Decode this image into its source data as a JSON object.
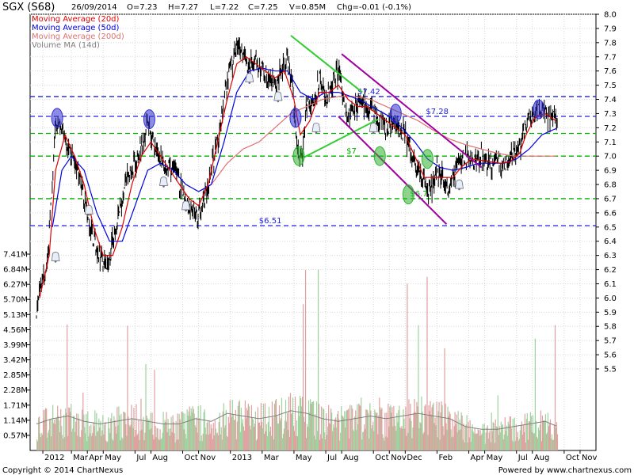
{
  "header": {
    "symbol": "SGX (S68)",
    "date": "26/09/2014",
    "open": "O=7.23",
    "high": "H=7.27",
    "low": "L=7.22",
    "close": "C=7.25",
    "volume": "V=0.85M",
    "change": "Chg=-0.01 (-0.1%)"
  },
  "footer": {
    "copyright": "Copyright © 2014 ChartNexus",
    "powered": "Powered by www.chartnexus.com"
  },
  "colors": {
    "price": "#000000",
    "ma20": "#e00000",
    "ma50": "#0000e0",
    "ma200": "#e07070",
    "volume_ma": "#808080",
    "vol_up": "#9ed29e",
    "vol_down": "#e0a0a0",
    "support": "#00b000",
    "resistance": "#2020e0",
    "trend_green": "#33cc33",
    "trend_purple": "#a000a0"
  },
  "chart_data": {
    "type": "line",
    "price_axis": {
      "min": 5.5,
      "max": 8.0,
      "ticks": [
        "8.0",
        "7.9",
        "7.8",
        "7.7",
        "7.6",
        "7.5",
        "7.4",
        "7.3",
        "7.2",
        "7.1",
        "7.0",
        "6.9",
        "6.8",
        "6.7",
        "6.6",
        "6.5",
        "6.4",
        "6.3",
        "6.2",
        "6.1",
        "6.0",
        "5.9",
        "5.8",
        "5.7",
        "5.6",
        "5.5"
      ]
    },
    "volume_axis": {
      "min": 0,
      "max": 7.41,
      "ticks": [
        "7.41M",
        "6.84M",
        "6.27M",
        "5.70M",
        "5.13M",
        "4.56M",
        "3.99M",
        "3.42M",
        "2.85M",
        "2.28M",
        "1.71M",
        "1.14M",
        "0.57M"
      ]
    },
    "x_labels": [
      {
        "label": "2012",
        "m": 0.4
      },
      {
        "label": "Mar",
        "m": 2.2
      },
      {
        "label": "Apr",
        "m": 3.2
      },
      {
        "label": "May",
        "m": 4.2
      },
      {
        "label": "Jul",
        "m": 6.2
      },
      {
        "label": "Aug",
        "m": 7.2
      },
      {
        "label": "Oct",
        "m": 9.2
      },
      {
        "label": "Nov",
        "m": 10.2
      },
      {
        "label": "2013",
        "m": 12.2
      },
      {
        "label": "Mar",
        "m": 14.2
      },
      {
        "label": "May",
        "m": 16.2
      },
      {
        "label": "Jul",
        "m": 18.2
      },
      {
        "label": "Aug",
        "m": 19.2
      },
      {
        "label": "Oct",
        "m": 21.2
      },
      {
        "label": "Nov",
        "m": 22.2
      },
      {
        "label": "Dec",
        "m": 23.2
      },
      {
        "label": "Feb",
        "m": 25.2
      },
      {
        "label": "Apr",
        "m": 27.2
      },
      {
        "label": "May",
        "m": 28.2
      },
      {
        "label": "Jul",
        "m": 30.2
      },
      {
        "label": "Aug",
        "m": 31.2
      },
      {
        "label": "Oct",
        "m": 33.2
      },
      {
        "label": "Nov",
        "m": 34.2
      }
    ],
    "legend": [
      {
        "name": "Moving Average (20d)",
        "color": "#e00000"
      },
      {
        "name": "Moving Average (50d)",
        "color": "#0000e0"
      },
      {
        "name": "Moving Average (200d)",
        "color": "#e07070"
      },
      {
        "name": "Volume MA (14d)",
        "color": "#808080"
      }
    ],
    "price_anchors": [
      [
        0.0,
        5.9
      ],
      [
        0.3,
        6.1
      ],
      [
        0.6,
        6.2
      ],
      [
        0.9,
        6.6
      ],
      [
        1.2,
        7.2
      ],
      [
        1.6,
        7.2
      ],
      [
        2.2,
        7.0
      ],
      [
        2.8,
        6.8
      ],
      [
        3.2,
        6.6
      ],
      [
        3.6,
        6.4
      ],
      [
        4.0,
        6.3
      ],
      [
        4.4,
        6.2
      ],
      [
        4.8,
        6.4
      ],
      [
        5.2,
        6.6
      ],
      [
        5.6,
        6.8
      ],
      [
        6.0,
        6.9
      ],
      [
        6.4,
        7.0
      ],
      [
        6.8,
        7.1
      ],
      [
        7.0,
        7.25
      ],
      [
        7.4,
        7.1
      ],
      [
        7.8,
        7.0
      ],
      [
        8.2,
        6.9
      ],
      [
        8.6,
        6.9
      ],
      [
        9.0,
        6.8
      ],
      [
        9.4,
        6.7
      ],
      [
        9.8,
        6.6
      ],
      [
        10.2,
        6.6
      ],
      [
        10.6,
        6.7
      ],
      [
        11.0,
        6.9
      ],
      [
        11.4,
        7.1
      ],
      [
        11.8,
        7.4
      ],
      [
        12.2,
        7.6
      ],
      [
        12.6,
        7.75
      ],
      [
        13.0,
        7.7
      ],
      [
        13.4,
        7.65
      ],
      [
        13.8,
        7.7
      ],
      [
        14.2,
        7.6
      ],
      [
        14.6,
        7.55
      ],
      [
        15.0,
        7.5
      ],
      [
        15.4,
        7.6
      ],
      [
        15.8,
        7.7
      ],
      [
        16.1,
        7.5
      ],
      [
        16.4,
        7.0
      ],
      [
        16.7,
        7.0
      ],
      [
        17.0,
        7.35
      ],
      [
        17.4,
        7.35
      ],
      [
        17.8,
        7.55
      ],
      [
        18.2,
        7.4
      ],
      [
        18.6,
        7.5
      ],
      [
        19.0,
        7.6
      ],
      [
        19.3,
        7.4
      ],
      [
        19.6,
        7.3
      ],
      [
        20.0,
        7.3
      ],
      [
        20.4,
        7.4
      ],
      [
        20.8,
        7.35
      ],
      [
        21.2,
        7.3
      ],
      [
        21.6,
        7.25
      ],
      [
        22.0,
        7.2
      ],
      [
        22.4,
        7.25
      ],
      [
        22.8,
        7.2
      ],
      [
        23.2,
        7.15
      ],
      [
        23.6,
        7.0
      ],
      [
        24.0,
        6.9
      ],
      [
        24.4,
        6.8
      ],
      [
        24.8,
        6.75
      ],
      [
        25.2,
        6.9
      ],
      [
        25.6,
        6.85
      ],
      [
        26.0,
        6.75
      ],
      [
        26.4,
        6.9
      ],
      [
        26.8,
        6.98
      ],
      [
        27.2,
        7.0
      ],
      [
        27.6,
        6.95
      ],
      [
        28.0,
        7.0
      ],
      [
        28.4,
        6.95
      ],
      [
        28.8,
        6.95
      ],
      [
        29.2,
        6.95
      ],
      [
        29.6,
        6.95
      ],
      [
        30.0,
        7.0
      ],
      [
        30.4,
        7.05
      ],
      [
        30.8,
        7.2
      ],
      [
        31.2,
        7.3
      ],
      [
        31.6,
        7.35
      ],
      [
        32.0,
        7.3
      ],
      [
        32.4,
        7.27
      ],
      [
        32.8,
        7.25
      ]
    ],
    "ma20_anchors": [
      [
        0.2,
        6.0
      ],
      [
        0.8,
        6.3
      ],
      [
        1.2,
        6.9
      ],
      [
        1.8,
        7.15
      ],
      [
        2.4,
        7.0
      ],
      [
        3.0,
        6.8
      ],
      [
        3.6,
        6.5
      ],
      [
        4.2,
        6.3
      ],
      [
        4.8,
        6.3
      ],
      [
        5.4,
        6.5
      ],
      [
        6.0,
        6.8
      ],
      [
        6.6,
        7.0
      ],
      [
        7.2,
        7.1
      ],
      [
        7.8,
        7.0
      ],
      [
        8.4,
        6.9
      ],
      [
        9.0,
        6.8
      ],
      [
        9.6,
        6.7
      ],
      [
        10.2,
        6.65
      ],
      [
        10.8,
        6.8
      ],
      [
        11.4,
        7.1
      ],
      [
        12.0,
        7.4
      ],
      [
        12.6,
        7.65
      ],
      [
        13.2,
        7.7
      ],
      [
        13.8,
        7.65
      ],
      [
        14.4,
        7.6
      ],
      [
        15.0,
        7.55
      ],
      [
        15.6,
        7.6
      ],
      [
        16.2,
        7.4
      ],
      [
        16.6,
        7.15
      ],
      [
        17.2,
        7.25
      ],
      [
        17.8,
        7.45
      ],
      [
        18.4,
        7.45
      ],
      [
        19.0,
        7.5
      ],
      [
        19.6,
        7.4
      ],
      [
        20.2,
        7.35
      ],
      [
        20.8,
        7.35
      ],
      [
        21.4,
        7.3
      ],
      [
        22.0,
        7.25
      ],
      [
        22.6,
        7.2
      ],
      [
        23.2,
        7.15
      ],
      [
        23.8,
        7.0
      ],
      [
        24.4,
        6.85
      ],
      [
        25.0,
        6.85
      ],
      [
        25.6,
        6.85
      ],
      [
        26.2,
        6.85
      ],
      [
        26.8,
        6.93
      ],
      [
        27.4,
        6.98
      ],
      [
        28.0,
        6.97
      ],
      [
        28.6,
        6.96
      ],
      [
        29.2,
        6.95
      ],
      [
        29.8,
        6.96
      ],
      [
        30.4,
        7.02
      ],
      [
        30.8,
        7.15
      ],
      [
        31.4,
        7.28
      ],
      [
        32.0,
        7.3
      ],
      [
        32.8,
        7.24
      ]
    ],
    "ma50_anchors": [
      [
        1.0,
        6.5
      ],
      [
        1.6,
        6.9
      ],
      [
        2.2,
        7.0
      ],
      [
        3.0,
        6.9
      ],
      [
        3.8,
        6.6
      ],
      [
        4.6,
        6.4
      ],
      [
        5.4,
        6.4
      ],
      [
        6.2,
        6.65
      ],
      [
        7.0,
        6.9
      ],
      [
        7.8,
        6.95
      ],
      [
        8.6,
        6.9
      ],
      [
        9.4,
        6.8
      ],
      [
        10.2,
        6.75
      ],
      [
        11.0,
        6.8
      ],
      [
        11.8,
        7.1
      ],
      [
        12.6,
        7.45
      ],
      [
        13.4,
        7.6
      ],
      [
        14.2,
        7.62
      ],
      [
        15.0,
        7.6
      ],
      [
        15.8,
        7.6
      ],
      [
        16.6,
        7.45
      ],
      [
        17.4,
        7.4
      ],
      [
        18.2,
        7.45
      ],
      [
        19.0,
        7.45
      ],
      [
        19.8,
        7.42
      ],
      [
        20.6,
        7.38
      ],
      [
        21.4,
        7.33
      ],
      [
        22.2,
        7.28
      ],
      [
        23.0,
        7.2
      ],
      [
        23.8,
        7.1
      ],
      [
        24.6,
        6.98
      ],
      [
        25.4,
        6.92
      ],
      [
        26.2,
        6.9
      ],
      [
        27.0,
        6.92
      ],
      [
        27.8,
        6.95
      ],
      [
        28.6,
        6.95
      ],
      [
        29.4,
        6.95
      ],
      [
        30.2,
        6.98
      ],
      [
        31.0,
        7.05
      ],
      [
        31.8,
        7.15
      ],
      [
        32.8,
        7.2
      ]
    ],
    "ma200_anchors": [
      [
        10.2,
        6.75
      ],
      [
        11.0,
        6.8
      ],
      [
        12.0,
        6.95
      ],
      [
        13.0,
        7.05
      ],
      [
        14.0,
        7.1
      ],
      [
        15.0,
        7.2
      ],
      [
        16.0,
        7.3
      ],
      [
        17.0,
        7.35
      ],
      [
        18.0,
        7.4
      ],
      [
        19.0,
        7.42
      ],
      [
        20.0,
        7.42
      ],
      [
        21.0,
        7.4
      ],
      [
        22.0,
        7.35
      ],
      [
        23.0,
        7.3
      ],
      [
        24.0,
        7.25
      ],
      [
        25.0,
        7.18
      ],
      [
        26.0,
        7.12
      ],
      [
        27.0,
        7.08
      ],
      [
        28.0,
        7.05
      ],
      [
        29.0,
        7.02
      ],
      [
        30.0,
        7.0
      ],
      [
        31.0,
        7.0
      ],
      [
        32.0,
        7.0
      ],
      [
        32.8,
        7.0
      ]
    ],
    "volume_ma_anchors": [
      [
        0,
        1.0
      ],
      [
        1.0,
        1.2
      ],
      [
        2.0,
        1.3
      ],
      [
        3.0,
        1.1
      ],
      [
        4.0,
        1.0
      ],
      [
        5.0,
        1.1
      ],
      [
        6.0,
        1.2
      ],
      [
        7.0,
        1.1
      ],
      [
        8.0,
        1.0
      ],
      [
        9.0,
        1.0
      ],
      [
        10.0,
        1.2
      ],
      [
        11.0,
        1.1
      ],
      [
        12.0,
        1.4
      ],
      [
        13.0,
        1.3
      ],
      [
        14.0,
        1.2
      ],
      [
        15.0,
        1.3
      ],
      [
        16.0,
        1.5
      ],
      [
        17.0,
        1.4
      ],
      [
        18.0,
        1.2
      ],
      [
        19.0,
        1.1
      ],
      [
        20.0,
        1.2
      ],
      [
        21.0,
        1.3
      ],
      [
        22.0,
        1.2
      ],
      [
        23.0,
        1.3
      ],
      [
        24.0,
        1.4
      ],
      [
        25.0,
        1.3
      ],
      [
        26.0,
        1.2
      ],
      [
        27.0,
        0.9
      ],
      [
        28.0,
        0.8
      ],
      [
        29.0,
        0.8
      ],
      [
        30.0,
        0.9
      ],
      [
        31.0,
        1.0
      ],
      [
        32.0,
        1.1
      ],
      [
        32.8,
        0.9
      ]
    ],
    "horizontal_levels": [
      {
        "value": 7.42,
        "color": "#2020e0",
        "label": "$7.42",
        "label_at": 20.2
      },
      {
        "value": 7.28,
        "color": "#2020e0",
        "label": "$7.28",
        "label_at": 24.5
      },
      {
        "value": 7.16,
        "color": "#00b000",
        "label": "",
        "label_at": 0
      },
      {
        "value": 7.0,
        "color": "#00b000",
        "label": "$7",
        "label_at": 19.5
      },
      {
        "value": 6.7,
        "color": "#00b000",
        "label": "$6.7",
        "label_at": 23.5
      },
      {
        "value": 6.51,
        "color": "#2020e0",
        "label": "$6.51",
        "label_at": 14.0
      }
    ],
    "trendlines": [
      {
        "color": "#33cc33",
        "from": [
          16.0,
          7.85
        ],
        "to": [
          20.5,
          7.45
        ]
      },
      {
        "color": "#33cc33",
        "from": [
          16.8,
          6.99
        ],
        "to": [
          21.5,
          7.26
        ]
      },
      {
        "color": "#a000a0",
        "from": [
          19.2,
          7.72
        ],
        "to": [
          28.0,
          6.92
        ]
      },
      {
        "color": "#a000a0",
        "from": [
          19.0,
          7.28
        ],
        "to": [
          25.8,
          6.52
        ]
      }
    ],
    "ellipses": [
      {
        "color": "#3030d0",
        "at": [
          1.3,
          7.27
        ]
      },
      {
        "color": "#3030d0",
        "at": [
          7.1,
          7.26
        ]
      },
      {
        "color": "#3030d0",
        "at": [
          16.3,
          7.27
        ]
      },
      {
        "color": "#3030d0",
        "at": [
          22.6,
          7.3
        ]
      },
      {
        "color": "#3030d0",
        "at": [
          31.6,
          7.33
        ]
      },
      {
        "color": "#30b030",
        "at": [
          16.5,
          7.0
        ]
      },
      {
        "color": "#30b030",
        "at": [
          21.6,
          7.0
        ]
      },
      {
        "color": "#30b030",
        "at": [
          24.6,
          6.98
        ]
      },
      {
        "color": "#30b030",
        "at": [
          23.4,
          6.73
        ]
      }
    ],
    "bells": [
      [
        1.2,
        6.29
      ],
      [
        3.3,
        6.62
      ],
      [
        8.0,
        6.82
      ],
      [
        9.4,
        6.65
      ],
      [
        13.4,
        7.55
      ],
      [
        15.2,
        7.42
      ],
      [
        21.2,
        7.2
      ],
      [
        26.6,
        6.8
      ],
      [
        17.6,
        7.2
      ]
    ]
  }
}
